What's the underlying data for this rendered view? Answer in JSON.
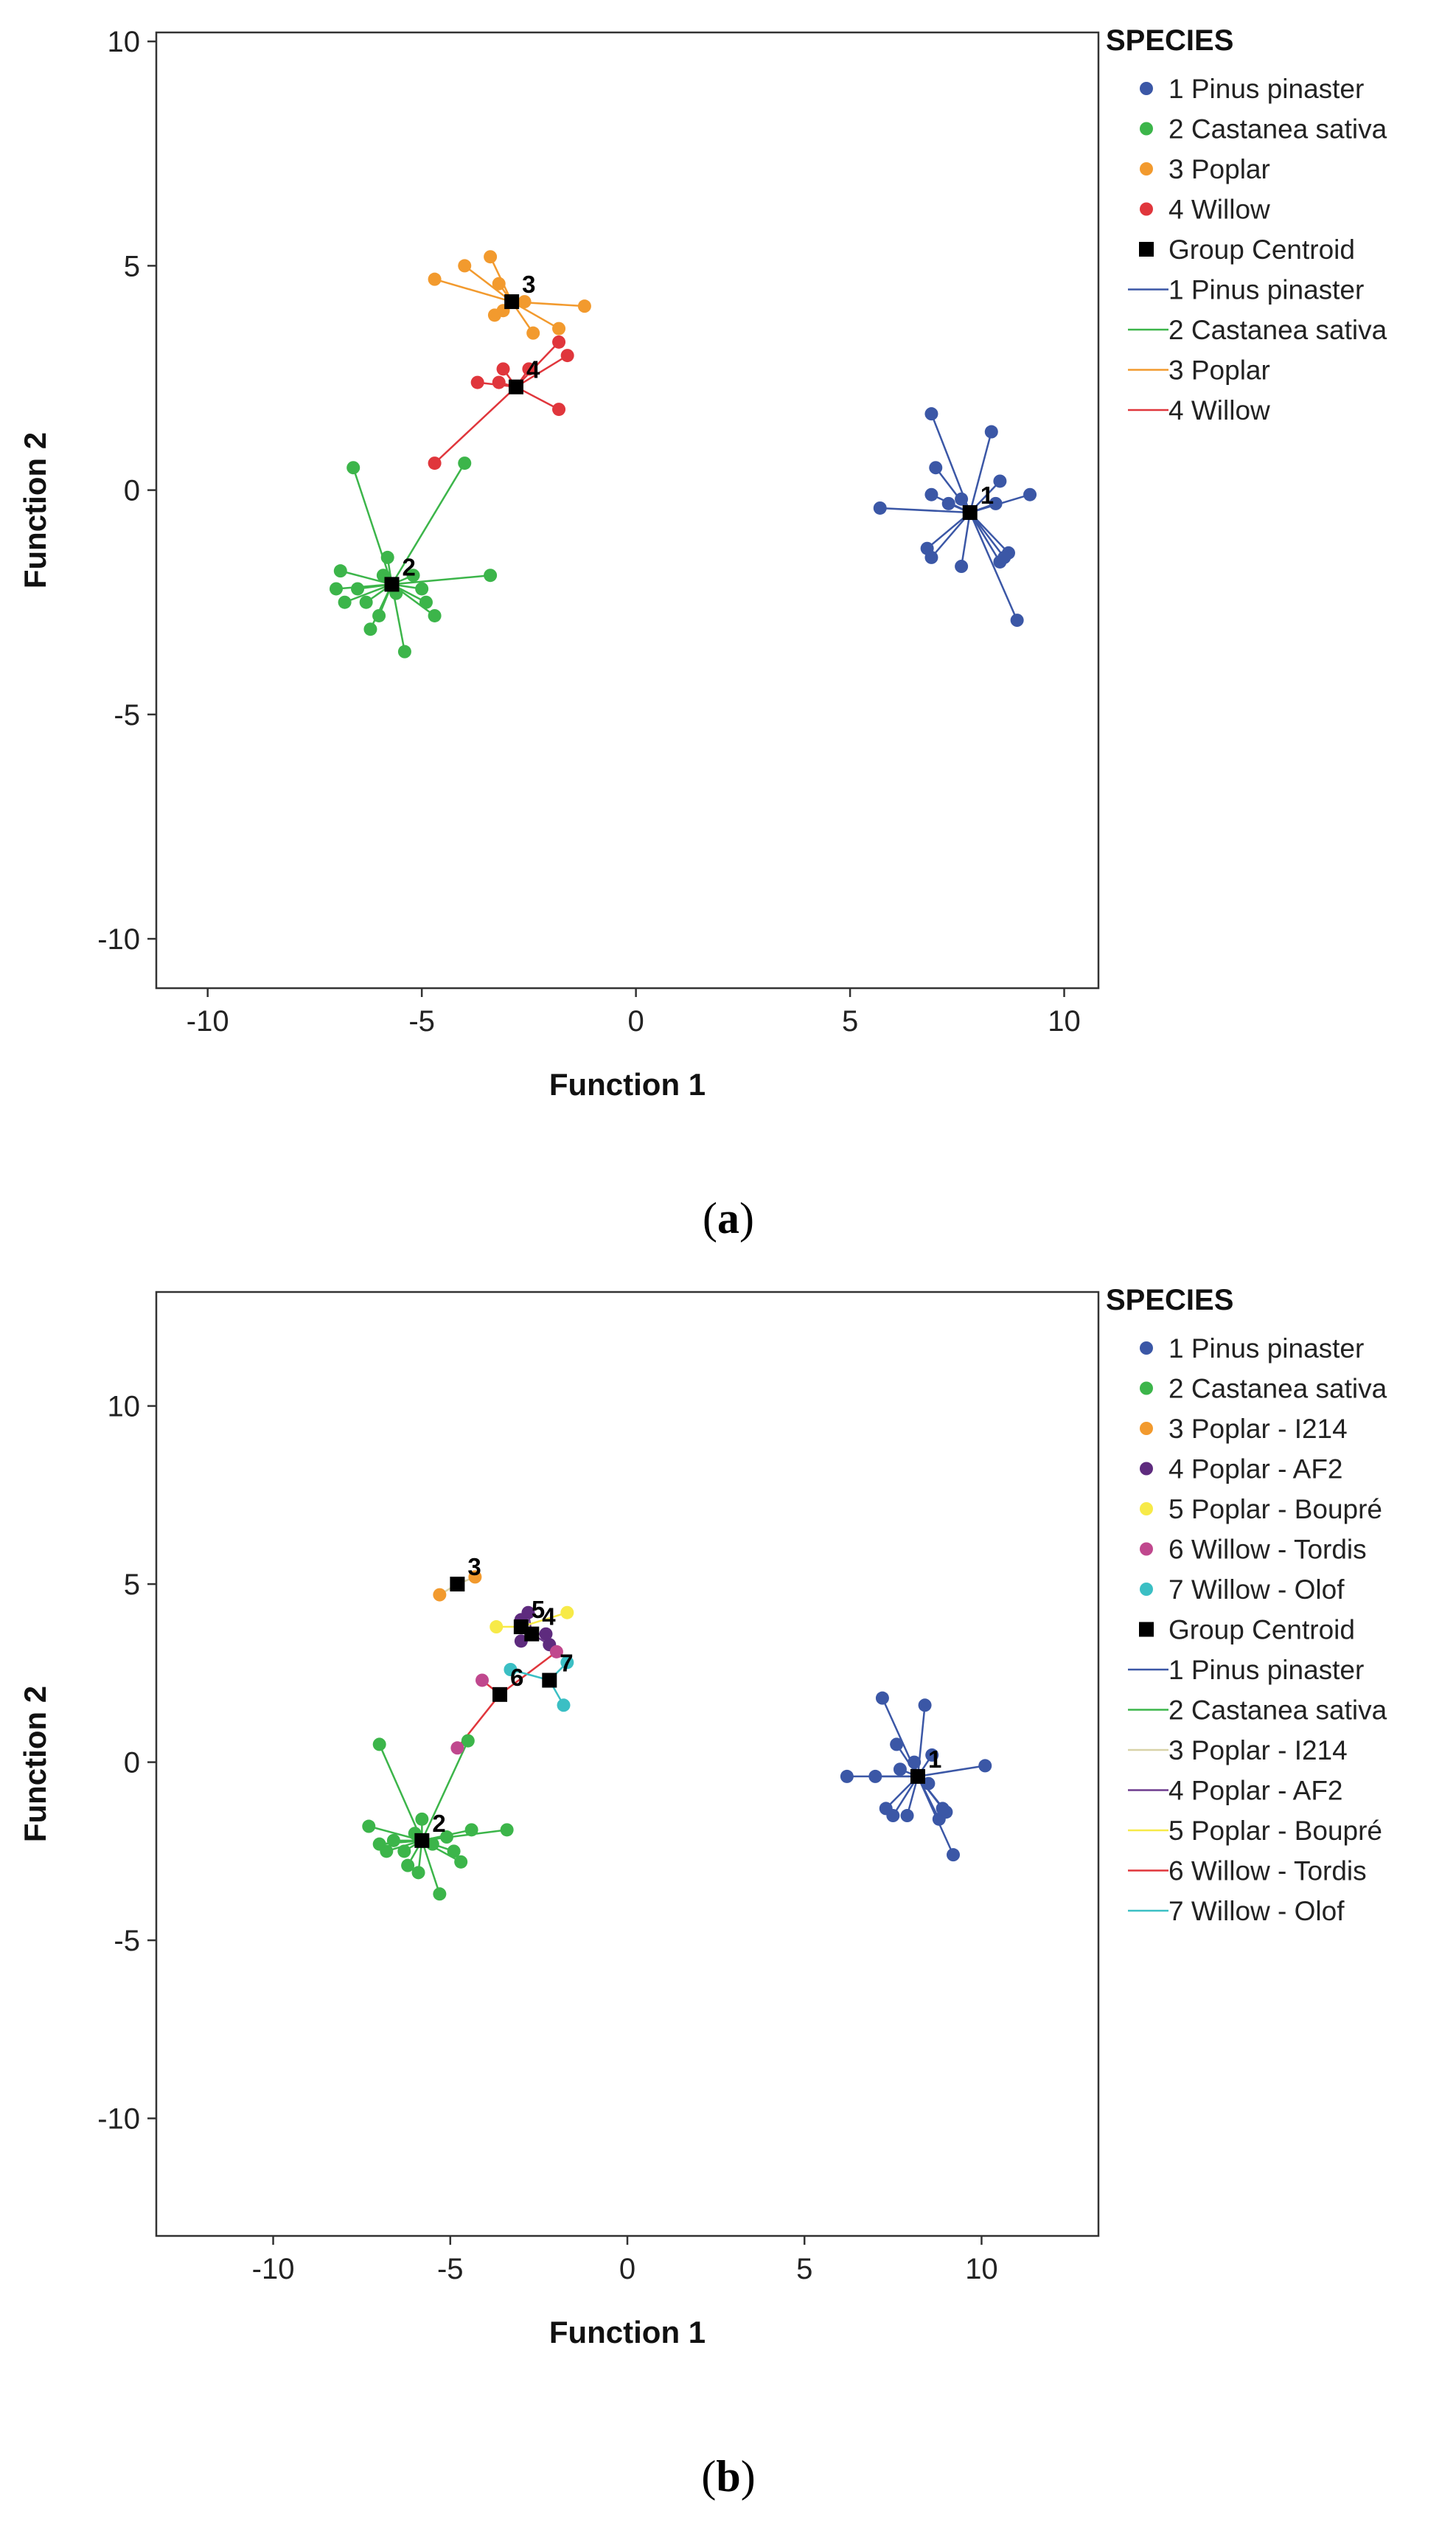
{
  "chart_data": [
    {
      "panel": "(a)",
      "caption_letter": "a",
      "type": "scatter",
      "xlabel": "Function 1",
      "ylabel": "Function 2",
      "xlim": [
        -11.2,
        10.8
      ],
      "ylim": [
        -11.1,
        10.2
      ],
      "xticks": [
        -10,
        -5,
        0,
        5,
        10
      ],
      "yticks": [
        -10,
        -5,
        0,
        5,
        10
      ],
      "legend_title": "SPECIES",
      "centroid_label": "Group Centroid",
      "series": [
        {
          "id": "1",
          "name": "1 Pinus pinaster",
          "color": "#3b57a6",
          "centroid": [
            7.8,
            -0.5
          ],
          "points": [
            [
              5.7,
              -0.4
            ],
            [
              6.8,
              -1.3
            ],
            [
              6.9,
              -1.5
            ],
            [
              6.9,
              1.7
            ],
            [
              7.0,
              0.5
            ],
            [
              6.9,
              -0.1
            ],
            [
              7.3,
              -0.3
            ],
            [
              7.6,
              -1.7
            ],
            [
              7.6,
              -0.2
            ],
            [
              8.3,
              1.3
            ],
            [
              8.4,
              -0.3
            ],
            [
              8.5,
              0.2
            ],
            [
              8.5,
              -1.6
            ],
            [
              8.7,
              -1.4
            ],
            [
              8.9,
              -2.9
            ],
            [
              9.2,
              -0.1
            ],
            [
              8.6,
              -1.5
            ]
          ]
        },
        {
          "id": "2",
          "name": "2 Castanea sativa",
          "color": "#3cb54a",
          "centroid": [
            -5.7,
            -2.1
          ],
          "points": [
            [
              -6.6,
              0.5
            ],
            [
              -4.0,
              0.6
            ],
            [
              -3.4,
              -1.9
            ],
            [
              -6.9,
              -1.8
            ],
            [
              -7.0,
              -2.2
            ],
            [
              -6.8,
              -2.5
            ],
            [
              -6.5,
              -2.2
            ],
            [
              -6.3,
              -2.5
            ],
            [
              -6.2,
              -3.1
            ],
            [
              -6.0,
              -2.8
            ],
            [
              -5.8,
              -1.5
            ],
            [
              -5.6,
              -2.3
            ],
            [
              -5.4,
              -3.6
            ],
            [
              -5.2,
              -1.9
            ],
            [
              -5.0,
              -2.2
            ],
            [
              -4.9,
              -2.5
            ],
            [
              -4.7,
              -2.8
            ],
            [
              -5.9,
              -1.9
            ]
          ]
        },
        {
          "id": "3",
          "name": "3 Poplar",
          "color": "#f29a2e",
          "centroid": [
            -2.9,
            4.2
          ],
          "points": [
            [
              -4.7,
              4.7
            ],
            [
              -4.0,
              5.0
            ],
            [
              -3.4,
              5.2
            ],
            [
              -3.2,
              4.6
            ],
            [
              -3.3,
              3.9
            ],
            [
              -2.6,
              4.2
            ],
            [
              -2.4,
              3.5
            ],
            [
              -1.8,
              3.6
            ],
            [
              -1.2,
              4.1
            ],
            [
              -3.1,
              4.0
            ]
          ]
        },
        {
          "id": "4",
          "name": "4 Willow",
          "color": "#e0363c",
          "centroid": [
            -2.8,
            2.3
          ],
          "points": [
            [
              -4.7,
              0.6
            ],
            [
              -3.7,
              2.4
            ],
            [
              -3.1,
              2.7
            ],
            [
              -2.5,
              2.7
            ],
            [
              -1.8,
              3.3
            ],
            [
              -1.6,
              3.0
            ],
            [
              -1.8,
              1.8
            ],
            [
              -3.2,
              2.4
            ]
          ]
        }
      ],
      "legend_lines": [
        "1 Pinus pinaster",
        "2 Castanea sativa",
        "3 Poplar",
        "4 Willow"
      ]
    },
    {
      "panel": "(b)",
      "caption_letter": "b",
      "type": "scatter",
      "xlabel": "Function 1",
      "ylabel": "Function 2",
      "xlim": [
        -13.3,
        13.3
      ],
      "ylim": [
        -13.3,
        13.2
      ],
      "xticks": [
        -10,
        -5,
        0,
        5,
        10
      ],
      "yticks": [
        -10,
        -5,
        0,
        5,
        10
      ],
      "legend_title": "SPECIES",
      "centroid_label": "Group Centroid",
      "series": [
        {
          "id": "1",
          "name": "1 Pinus pinaster",
          "color": "#3b57a6",
          "line_color": "#3b57a6",
          "centroid": [
            8.2,
            -0.4
          ],
          "points": [
            [
              6.2,
              -0.4
            ],
            [
              7.0,
              -0.4
            ],
            [
              7.2,
              1.8
            ],
            [
              7.3,
              -1.3
            ],
            [
              7.5,
              -1.5
            ],
            [
              7.6,
              0.5
            ],
            [
              7.7,
              -0.2
            ],
            [
              7.9,
              -1.5
            ],
            [
              8.1,
              0.0
            ],
            [
              8.4,
              1.6
            ],
            [
              8.5,
              -0.6
            ],
            [
              8.6,
              0.2
            ],
            [
              8.8,
              -1.6
            ],
            [
              9.0,
              -1.4
            ],
            [
              9.2,
              -2.6
            ],
            [
              10.1,
              -0.1
            ],
            [
              8.9,
              -1.3
            ]
          ]
        },
        {
          "id": "2",
          "name": "2 Castanea sativa",
          "color": "#3cb54a",
          "line_color": "#3cb54a",
          "centroid": [
            -5.8,
            -2.2
          ],
          "points": [
            [
              -7.0,
              0.5
            ],
            [
              -4.5,
              0.6
            ],
            [
              -3.4,
              -1.9
            ],
            [
              -7.3,
              -1.8
            ],
            [
              -7.0,
              -2.3
            ],
            [
              -6.8,
              -2.5
            ],
            [
              -6.6,
              -2.2
            ],
            [
              -6.3,
              -2.5
            ],
            [
              -6.2,
              -2.9
            ],
            [
              -5.9,
              -3.1
            ],
            [
              -5.8,
              -1.6
            ],
            [
              -5.5,
              -2.3
            ],
            [
              -5.3,
              -3.7
            ],
            [
              -5.1,
              -2.1
            ],
            [
              -4.9,
              -2.5
            ],
            [
              -4.7,
              -2.8
            ],
            [
              -4.4,
              -1.9
            ],
            [
              -6.0,
              -2.0
            ]
          ]
        },
        {
          "id": "3",
          "name": "3 Poplar - I214",
          "color": "#f29a2e",
          "line_color": "#d8d2a8",
          "centroid": [
            -4.8,
            5.0
          ],
          "points": [
            [
              -5.3,
              4.7
            ],
            [
              -4.3,
              5.2
            ]
          ]
        },
        {
          "id": "4",
          "name": "4 Poplar - AF2",
          "color": "#5e2b7e",
          "line_color": "#6e3b8e",
          "centroid": [
            -2.7,
            3.6
          ],
          "points": [
            [
              -3.0,
              4.0
            ],
            [
              -2.8,
              4.2
            ],
            [
              -3.0,
              3.4
            ],
            [
              -2.3,
              3.6
            ],
            [
              -2.2,
              3.3
            ]
          ]
        },
        {
          "id": "5",
          "name": "5 Poplar - Boupré",
          "color": "#f7ea48",
          "line_color": "#f7ea48",
          "centroid": [
            -3.0,
            3.8
          ],
          "points": [
            [
              -3.7,
              3.8
            ],
            [
              -1.7,
              4.2
            ]
          ]
        },
        {
          "id": "6",
          "name": "6 Willow - Tordis",
          "color": "#c0488e",
          "line_color": "#e0363c",
          "centroid": [
            -3.6,
            1.9
          ],
          "points": [
            [
              -4.8,
              0.4
            ],
            [
              -4.1,
              2.3
            ],
            [
              -2.0,
              3.1
            ]
          ]
        },
        {
          "id": "7",
          "name": "7 Willow - Olof",
          "color": "#3bbfc4",
          "line_color": "#3bbfc4",
          "centroid": [
            -2.2,
            2.3
          ],
          "points": [
            [
              -3.3,
              2.6
            ],
            [
              -1.7,
              2.8
            ],
            [
              -1.8,
              1.6
            ]
          ]
        }
      ],
      "legend_lines": [
        "1 Pinus pinaster",
        "2 Castanea sativa",
        "3 Poplar - I214",
        "4 Poplar - AF2",
        "5 Poplar - Boupré",
        "6 Willow - Tordis",
        "7 Willow - Olof"
      ]
    }
  ]
}
